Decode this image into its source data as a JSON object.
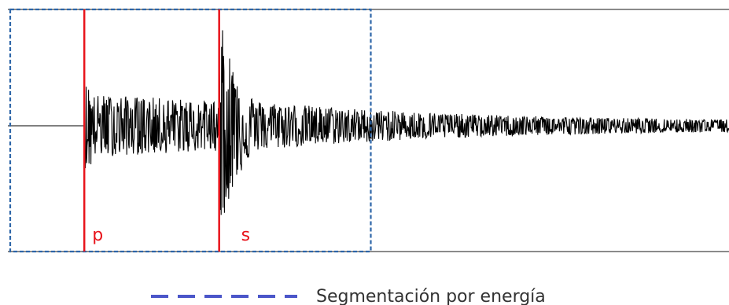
{
  "chart_data": {
    "type": "line",
    "title": "",
    "xlabel": "",
    "ylabel": "",
    "grid": false,
    "series": [
      {
        "values_described_as": "seismic waveform: flat until P arrival, moderate noise between P and S, large burst at S arrival, exponential decay coda",
        "p_arrival": 0.106,
        "s_arrival": 0.293,
        "peak_amplitude_relative": 1.0,
        "pre_s_amplitude_relative": 0.25,
        "coda_end_amplitude_relative": 0.04
      }
    ],
    "markers": [
      {
        "label": "p",
        "color": "#e8141b"
      },
      {
        "label": "s",
        "color": "#e8141b"
      }
    ],
    "segment": {
      "start": 0.0,
      "end": 0.5,
      "color": "#2e66a8",
      "style": "dashed"
    },
    "legend": {
      "placement": "bottom-center",
      "entries": [
        {
          "label": "Segmentación por energía",
          "color": "#4b56c9",
          "style": "dashed"
        }
      ]
    },
    "axis_color": "#8a8a8a",
    "signal_color": "#000000"
  }
}
